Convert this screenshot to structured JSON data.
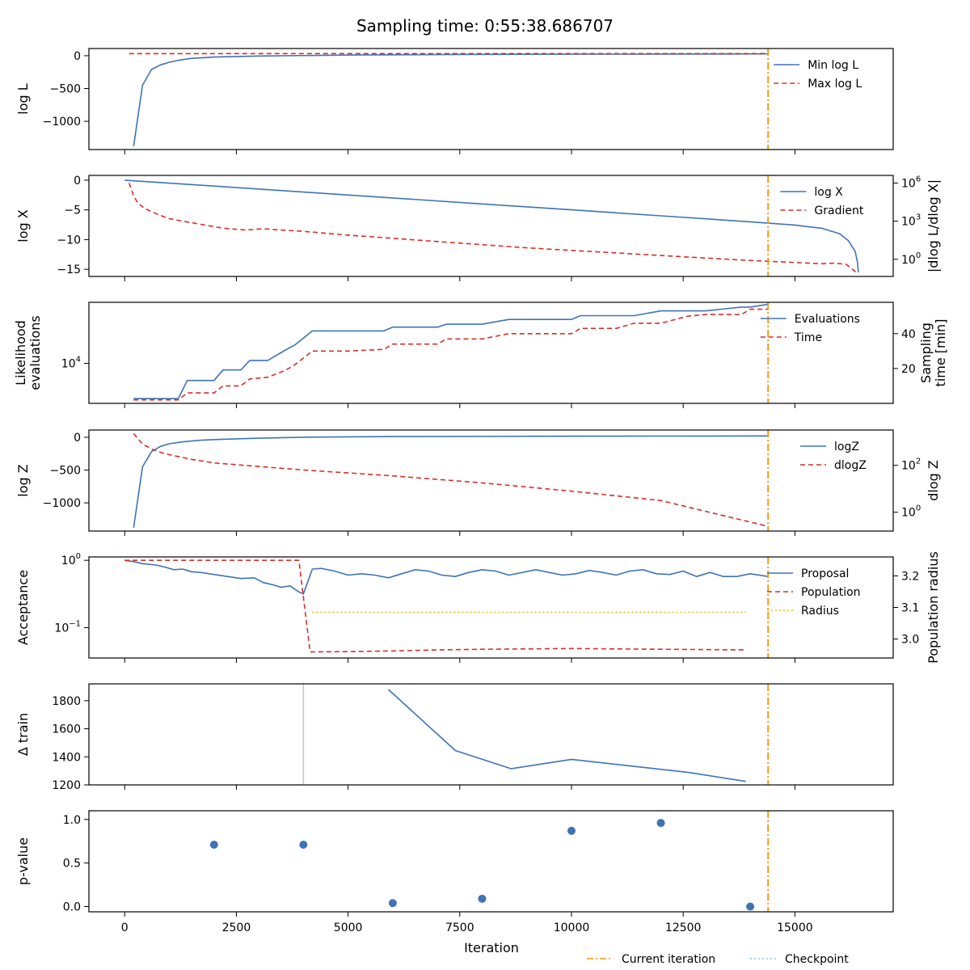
{
  "chart_data": {
    "title": "Sampling time: 0:55:38.686707",
    "xlabel": "Iteration",
    "xlim": [
      -800,
      17200
    ],
    "xticks": [
      0,
      2500,
      5000,
      7500,
      10000,
      12500,
      15000
    ],
    "current_iteration": 14400,
    "legend_bottom": [
      {
        "label": "Current iteration",
        "color": "#f39c12",
        "style": "dashdot"
      },
      {
        "label": "Checkpoint",
        "color": "#76c7e8",
        "style": "dotted"
      }
    ],
    "panels": [
      {
        "name": "loglike",
        "type": "line",
        "ylabel": "log L",
        "ylabel_italic": "L",
        "ylim": [
          -1430,
          110
        ],
        "yticks": [
          {
            "v": 0,
            "t": "0"
          },
          {
            "v": -500,
            "t": "−500"
          },
          {
            "v": -1000,
            "t": "−1000"
          }
        ],
        "series": [
          {
            "name": "Min log L",
            "axis": "left",
            "color": "#3f73b6",
            "dash": "",
            "x": [
              200,
              400,
              600,
              800,
              1000,
              1200,
              1500,
              2000,
              3000,
              5000,
              8000,
              12000,
              14400
            ],
            "y": [
              -1380,
              -450,
              -210,
              -140,
              -100,
              -70,
              -40,
              -20,
              -5,
              10,
              20,
              25,
              28
            ]
          },
          {
            "name": "Max log L",
            "axis": "left",
            "color": "#d62f2a",
            "dash": "6,4",
            "x": [
              100,
              14400
            ],
            "y": [
              32,
              32
            ]
          }
        ]
      },
      {
        "name": "logx",
        "type": "line",
        "ylabel": "log X",
        "ylabel_italic": "X",
        "ylim": [
          -16.2,
          0.8
        ],
        "yticks": [
          {
            "v": 0,
            "t": "0"
          },
          {
            "v": -5,
            "t": "−5"
          },
          {
            "v": -10,
            "t": "−10"
          },
          {
            "v": -15,
            "t": "−15"
          }
        ],
        "ylabel_right": "|dlog L/dlog X|",
        "ylim_right": [
          -1.35,
          6.6
        ],
        "yticks_right": [
          {
            "v": 6,
            "t": "10",
            "sup": "6"
          },
          {
            "v": 3,
            "t": "10",
            "sup": "3"
          },
          {
            "v": 0,
            "t": "10",
            "sup": "0"
          }
        ],
        "series": [
          {
            "name": "log X",
            "axis": "left",
            "color": "#3f73b6",
            "dash": "",
            "x": [
              0,
              2000,
              4000,
              6000,
              8000,
              10000,
              12000,
              14000,
              15000,
              15600,
              16000,
              16200,
              16350,
              16400,
              16420
            ],
            "y": [
              0,
              -1.0,
              -2.0,
              -3.0,
              -4.0,
              -5.0,
              -6.0,
              -7.0,
              -7.55,
              -8.1,
              -9.0,
              -10.2,
              -12.0,
              -13.8,
              -15.5
            ]
          },
          {
            "name": "Gradient",
            "axis": "right",
            "color": "#d62f2a",
            "dash": "6,4",
            "x": [
              100,
              200,
              300,
              450,
              600,
              800,
              1000,
              1300,
              1700,
              2200,
              2700,
              3100,
              3500,
              4000,
              5000,
              6000,
              7000,
              8000,
              9000,
              10000,
              11000,
              12000,
              13000,
              14000,
              15000,
              15600,
              15900,
              16150,
              16380
            ],
            "y": [
              6.0,
              5.0,
              4.4,
              4.0,
              3.75,
              3.45,
              3.2,
              3.0,
              2.75,
              2.45,
              2.3,
              2.4,
              2.3,
              2.2,
              1.9,
              1.65,
              1.4,
              1.15,
              0.9,
              0.7,
              0.5,
              0.3,
              0.1,
              -0.1,
              -0.25,
              -0.35,
              -0.3,
              -0.4,
              -1.05
            ]
          }
        ]
      },
      {
        "name": "evals",
        "type": "line",
        "ylabel": "Likelihood\nevaluations",
        "ylim": [
          -0.2,
          10.4
        ],
        "yticks": [
          {
            "v": 4,
            "t": "10",
            "sup": "4"
          }
        ],
        "ylabel_right": "Sampling\ntime [min]",
        "ylim_right": [
          0,
          58
        ],
        "yticks_right": [
          {
            "v": 20,
            "t": "20"
          },
          {
            "v": 40,
            "t": "40"
          }
        ],
        "series": [
          {
            "name": "Evaluations",
            "axis": "left",
            "color": "#3f73b6",
            "dash": "",
            "x": [
              200,
              1200,
              1400,
              2000,
              2200,
              2600,
              2800,
              3200,
              3600,
              3800,
              4200,
              5000,
              5800,
              6000,
              7000,
              7200,
              8000,
              8600,
              9000,
              10000,
              10200,
              11000,
              11400,
              12000,
              12600,
              13000,
              13800,
              14000,
              14400
            ],
            "y": [
              0.3,
              0.3,
              2.2,
              2.2,
              3.3,
              3.3,
              4.3,
              4.3,
              5.4,
              5.9,
              7.4,
              7.4,
              7.4,
              7.8,
              7.8,
              8.1,
              8.1,
              8.6,
              8.6,
              8.6,
              9.0,
              9.0,
              9.0,
              9.5,
              9.5,
              9.5,
              9.9,
              9.9,
              10.2
            ]
          },
          {
            "name": "Time",
            "axis": "right",
            "color": "#d62f2a",
            "dash": "6,4",
            "x": [
              200,
              1200,
              1400,
              2000,
              2200,
              2600,
              2800,
              3200,
              3600,
              3800,
              4200,
              5000,
              5800,
              6000,
              7000,
              7200,
              8000,
              8600,
              9000,
              10000,
              10200,
              11000,
              11400,
              12000,
              12600,
              13000,
              13800,
              14000,
              14400
            ],
            "y": [
              2,
              2,
              6,
              6,
              10,
              10,
              14,
              15,
              19,
              22,
              30,
              30,
              31,
              34,
              34,
              37,
              37,
              40,
              40,
              40,
              43,
              43,
              46,
              46,
              50,
              51,
              51,
              54,
              54
            ]
          }
        ]
      },
      {
        "name": "logz",
        "type": "line",
        "ylabel": "log Z",
        "ylabel_italic": "Z",
        "ylim": [
          -1430,
          110
        ],
        "yticks": [
          {
            "v": 0,
            "t": "0"
          },
          {
            "v": -500,
            "t": "−500"
          },
          {
            "v": -1000,
            "t": "−1000"
          }
        ],
        "ylabel_right": "dlog Z",
        "ylim_right": [
          -0.8,
          3.5
        ],
        "yticks_right": [
          {
            "v": 2,
            "t": "10",
            "sup": "2"
          },
          {
            "v": 0,
            "t": "10",
            "sup": "0"
          }
        ],
        "series": [
          {
            "name": "logZ",
            "axis": "left",
            "color": "#3f73b6",
            "dash": "",
            "x": [
              200,
              400,
              600,
              800,
              1000,
              1300,
              1700,
              2200,
              3000,
              4000,
              6000,
              9000,
              12000,
              14400
            ],
            "y": [
              -1380,
              -450,
              -220,
              -140,
              -100,
              -70,
              -45,
              -30,
              -15,
              0,
              10,
              15,
              18,
              20
            ]
          },
          {
            "name": "dlogZ",
            "axis": "right",
            "color": "#d62f2a",
            "dash": "6,4",
            "x": [
              200,
              400,
              600,
              800,
              1000,
              1500,
              2000,
              3000,
              4000,
              6000,
              8000,
              10000,
              12000,
              14400
            ],
            "y": [
              3.35,
              2.9,
              2.7,
              2.55,
              2.45,
              2.25,
              2.1,
              1.95,
              1.8,
              1.55,
              1.25,
              0.9,
              0.5,
              -0.6
            ]
          }
        ]
      },
      {
        "name": "acceptance",
        "type": "line",
        "ylabel": "Acceptance",
        "ylim": [
          -1.45,
          0.05
        ],
        "yticks": [
          {
            "v": 0,
            "t": "10",
            "sup": "0"
          },
          {
            "v": -1,
            "t": "10",
            "sup": "−1"
          }
        ],
        "ylabel_right": "Population radius",
        "ylim_right": [
          2.94,
          3.26
        ],
        "yticks_right": [
          {
            "v": 3.2,
            "t": "3.2"
          },
          {
            "v": 3.1,
            "t": "3.1"
          },
          {
            "v": 3.0,
            "t": "3.0"
          }
        ],
        "series": [
          {
            "name": "Proposal",
            "axis": "left",
            "color": "#3f73b6",
            "dash": "",
            "x": [
              0,
              200,
              400,
              700,
              900,
              1100,
              1300,
              1500,
              1700,
              2000,
              2300,
              2600,
              2900,
              3100,
              3300,
              3500,
              3700,
              3900,
              4000,
              4200,
              4400,
              4700,
              5000,
              5300,
              5600,
              5900,
              6200,
              6500,
              6800,
              7100,
              7400,
              7700,
              8000,
              8300,
              8600,
              8900,
              9200,
              9500,
              9800,
              10100,
              10400,
              10700,
              11000,
              11300,
              11600,
              11900,
              12200,
              12500,
              12800,
              13100,
              13400,
              13700,
              14000,
              14400
            ],
            "y": [
              0,
              -0.02,
              -0.05,
              -0.07,
              -0.1,
              -0.14,
              -0.13,
              -0.17,
              -0.18,
              -0.21,
              -0.24,
              -0.27,
              -0.26,
              -0.33,
              -0.36,
              -0.4,
              -0.38,
              -0.47,
              -0.5,
              -0.13,
              -0.12,
              -0.16,
              -0.22,
              -0.2,
              -0.22,
              -0.26,
              -0.2,
              -0.14,
              -0.16,
              -0.22,
              -0.24,
              -0.18,
              -0.14,
              -0.16,
              -0.22,
              -0.18,
              -0.14,
              -0.18,
              -0.22,
              -0.2,
              -0.15,
              -0.18,
              -0.22,
              -0.16,
              -0.14,
              -0.2,
              -0.21,
              -0.16,
              -0.24,
              -0.18,
              -0.24,
              -0.24,
              -0.2,
              -0.24
            ]
          },
          {
            "name": "Population",
            "axis": "left",
            "color": "#d62f2a",
            "dash": "6,4",
            "x": [
              0,
              3900,
              4150,
              5000,
              6000,
              7000,
              8000,
              9000,
              10000,
              11000,
              12000,
              13000,
              13900
            ],
            "y": [
              0,
              0,
              -1.36,
              -1.355,
              -1.345,
              -1.33,
              -1.32,
              -1.315,
              -1.31,
              -1.315,
              -1.32,
              -1.325,
              -1.33
            ]
          },
          {
            "name": "Radius",
            "axis": "right",
            "color": "#f5b915",
            "dash": "2,3",
            "x": [
              4200,
              13900
            ],
            "y": [
              3.085,
              3.085
            ]
          }
        ]
      },
      {
        "name": "train",
        "type": "line",
        "ylabel": "Δ train",
        "ylim": [
          1200,
          1920
        ],
        "yticks": [
          {
            "v": 1200,
            "t": "1200"
          },
          {
            "v": 1400,
            "t": "1400"
          },
          {
            "v": 1600,
            "t": "1600"
          },
          {
            "v": 1800,
            "t": "1800"
          }
        ],
        "vline_gray": 4000,
        "series": [
          {
            "name": "Δ train",
            "axis": "left",
            "color": "#3f73b6",
            "dash": "",
            "legend": false,
            "x": [
              5900,
              7400,
              8650,
              10000,
              12600,
              13900
            ],
            "y": [
              1880,
              1445,
              1315,
              1382,
              1290,
              1225
            ]
          }
        ]
      },
      {
        "name": "pvalue",
        "type": "scatter",
        "ylabel": "p-value",
        "ylim": [
          -0.06,
          1.1
        ],
        "yticks": [
          {
            "v": 0,
            "t": "0.0"
          },
          {
            "v": 0.5,
            "t": "0.5"
          },
          {
            "v": 1,
            "t": "1.0"
          }
        ],
        "series": [
          {
            "name": "p-value",
            "axis": "left",
            "color": "#3f73b6",
            "legend": false,
            "x": [
              2000,
              4000,
              6000,
              8000,
              10000,
              12000,
              14000
            ],
            "y": [
              0.71,
              0.71,
              0.04,
              0.09,
              0.87,
              0.96,
              0.0
            ]
          }
        ]
      }
    ]
  }
}
